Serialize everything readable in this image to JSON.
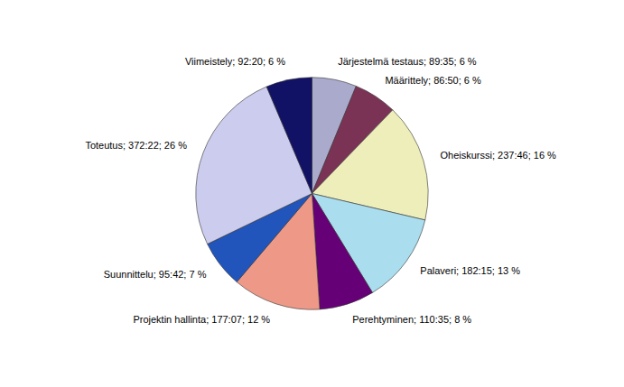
{
  "chart_data": {
    "type": "pie",
    "categories": [
      "Järjestelmä testaus; 89:35; 6 %",
      "Määrittely; 86:50; 6 %",
      "Oheiskurssi; 237:46; 16 %",
      "Palaveri; 182:15; 13 %",
      "Perehtyminen; 110:35; 8 %",
      "Projektin hallinta; 177:07; 12 %",
      "Suunnittelu; 95:42; 7 %",
      "Toteutus; 372:22; 26 %",
      "Viimeistely; 92:20; 6 %"
    ],
    "values": [
      89.583,
      86.833,
      237.767,
      182.25,
      110.583,
      177.117,
      95.7,
      372.367,
      92.333
    ],
    "colors": [
      "#aaaacc",
      "#7b3355",
      "#eeeebb",
      "#aaddee",
      "#660077",
      "#ee9988",
      "#2255bb",
      "#ccccee",
      "#111166"
    ]
  }
}
